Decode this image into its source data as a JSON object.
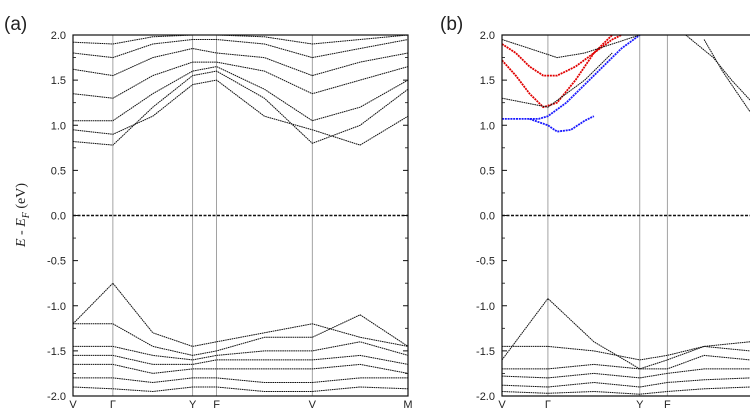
{
  "chart_data": [
    {
      "type": "line",
      "panel_label": "(a)",
      "ylabel": "E - E_F (eV)",
      "ylabel_main": "E - E",
      "ylabel_sub": "F",
      "ylabel_unit": " (eV)",
      "ylim": [
        -2.0,
        2.0
      ],
      "yticks": [
        "2.0",
        "1.5",
        "1.0",
        "0.5",
        "0.0",
        "-0.5",
        "-1.0",
        "-1.5",
        "-2.0"
      ],
      "kpoints": [
        {
          "label": "V",
          "x": 0.0
        },
        {
          "label": "Γ",
          "x": 0.5
        },
        {
          "label": "Y",
          "x": 1.5
        },
        {
          "label": "F",
          "x": 1.8
        },
        {
          "label": "V",
          "x": 3.0
        },
        {
          "label": "M",
          "x": 4.2
        }
      ],
      "fermi_level": 0.0,
      "series": [
        {
          "color": "#111111",
          "x": [
            0,
            0.5,
            1.0,
            1.5,
            1.8,
            2.4,
            3.0,
            3.6,
            4.2
          ],
          "y": [
            0.82,
            0.78,
            1.2,
            1.55,
            1.6,
            1.3,
            0.8,
            1.0,
            1.4
          ]
        },
        {
          "color": "#111111",
          "x": [
            0,
            0.5,
            1.0,
            1.5,
            1.8,
            2.4,
            3.0,
            3.6,
            4.2
          ],
          "y": [
            0.95,
            0.9,
            1.1,
            1.45,
            1.5,
            1.1,
            0.95,
            0.78,
            1.1
          ]
        },
        {
          "color": "#111111",
          "x": [
            0,
            0.5,
            1.0,
            1.5,
            1.8,
            2.4,
            3.0,
            3.6,
            4.2
          ],
          "y": [
            1.05,
            1.05,
            1.35,
            1.6,
            1.65,
            1.4,
            1.05,
            1.2,
            1.5
          ]
        },
        {
          "color": "#111111",
          "x": [
            0,
            0.5,
            1.0,
            1.5,
            1.8,
            2.4,
            3.0,
            3.6,
            4.2
          ],
          "y": [
            1.35,
            1.3,
            1.55,
            1.7,
            1.7,
            1.6,
            1.35,
            1.5,
            1.65
          ]
        },
        {
          "color": "#111111",
          "x": [
            0,
            0.5,
            1.0,
            1.5,
            1.8,
            2.4,
            3.0,
            3.6,
            4.2
          ],
          "y": [
            1.62,
            1.55,
            1.75,
            1.85,
            1.8,
            1.75,
            1.55,
            1.7,
            1.8
          ]
        },
        {
          "color": "#111111",
          "x": [
            0,
            0.5,
            1.0,
            1.5,
            1.8,
            2.4,
            3.0,
            3.6,
            4.2
          ],
          "y": [
            1.8,
            1.75,
            1.9,
            1.95,
            1.95,
            1.9,
            1.75,
            1.85,
            1.95
          ]
        },
        {
          "color": "#111111",
          "x": [
            0,
            0.5,
            1.0,
            1.5,
            1.8,
            2.4,
            3.0,
            3.6,
            4.2
          ],
          "y": [
            1.92,
            1.9,
            1.98,
            2.0,
            2.0,
            1.98,
            1.9,
            1.95,
            2.0
          ]
        },
        {
          "color": "#111111",
          "x": [
            0,
            0.5,
            1.0,
            1.5,
            1.8,
            2.4,
            3.0,
            3.6,
            4.2
          ],
          "y": [
            -1.2,
            -0.75,
            -1.3,
            -1.45,
            -1.4,
            -1.3,
            -1.2,
            -1.35,
            -1.45
          ]
        },
        {
          "color": "#111111",
          "x": [
            0,
            0.5,
            1.0,
            1.5,
            1.8,
            2.4,
            3.0,
            3.6,
            4.2
          ],
          "y": [
            -1.2,
            -1.2,
            -1.45,
            -1.55,
            -1.5,
            -1.35,
            -1.35,
            -1.1,
            -1.45
          ]
        },
        {
          "color": "#111111",
          "x": [
            0,
            0.5,
            1.0,
            1.5,
            1.8,
            2.4,
            3.0,
            3.6,
            4.2
          ],
          "y": [
            -1.45,
            -1.45,
            -1.55,
            -1.6,
            -1.55,
            -1.5,
            -1.5,
            -1.4,
            -1.55
          ]
        },
        {
          "color": "#111111",
          "x": [
            0,
            0.5,
            1.0,
            1.5,
            1.8,
            2.4,
            3.0,
            3.6,
            4.2
          ],
          "y": [
            -1.55,
            -1.55,
            -1.65,
            -1.65,
            -1.6,
            -1.6,
            -1.6,
            -1.55,
            -1.65
          ]
        },
        {
          "color": "#111111",
          "x": [
            0,
            0.5,
            1.0,
            1.5,
            1.8,
            2.4,
            3.0,
            3.6,
            4.2
          ],
          "y": [
            -1.65,
            -1.65,
            -1.75,
            -1.7,
            -1.7,
            -1.7,
            -1.7,
            -1.65,
            -1.75
          ]
        },
        {
          "color": "#111111",
          "x": [
            0,
            0.5,
            1.0,
            1.5,
            1.8,
            2.4,
            3.0,
            3.6,
            4.2
          ],
          "y": [
            -1.8,
            -1.8,
            -1.85,
            -1.8,
            -1.8,
            -1.85,
            -1.85,
            -1.8,
            -1.8
          ]
        },
        {
          "color": "#111111",
          "x": [
            0,
            0.5,
            1.0,
            1.5,
            1.8,
            2.4,
            3.0,
            3.6,
            4.2
          ],
          "y": [
            -1.9,
            -1.92,
            -1.95,
            -1.9,
            -1.9,
            -1.95,
            -1.95,
            -1.9,
            -1.92
          ]
        }
      ]
    },
    {
      "type": "line",
      "panel_label": "(b)",
      "ylim": [
        -2.0,
        2.0
      ],
      "yticks": [
        "2.0",
        "1.5",
        "1.0",
        "0.5",
        "0.0",
        "-0.5",
        "-1.0",
        "-1.5",
        "-2.0"
      ],
      "kpoints": [
        {
          "label": "V",
          "x": 0.0
        },
        {
          "label": "Γ",
          "x": 0.5
        },
        {
          "label": "Y",
          "x": 1.5
        },
        {
          "label": "F",
          "x": 1.8
        }
      ],
      "x_visible_max": 2.7,
      "fermi_level": 0.0,
      "series": [
        {
          "color": "#e00000",
          "x": [
            0,
            0.15,
            0.3,
            0.45,
            0.6,
            0.8,
            1.0,
            1.2
          ],
          "y": [
            1.72,
            1.55,
            1.35,
            1.2,
            1.25,
            1.5,
            1.8,
            2.0
          ]
        },
        {
          "color": "#e00000",
          "x": [
            0,
            0.15,
            0.3,
            0.45,
            0.6,
            0.8,
            1.0,
            1.2,
            1.3
          ],
          "y": [
            1.9,
            1.8,
            1.65,
            1.55,
            1.55,
            1.65,
            1.8,
            1.95,
            2.0
          ]
        },
        {
          "color": "#1a1aff",
          "x": [
            0,
            0.2,
            0.4,
            0.5,
            0.7,
            0.9,
            1.1,
            1.3,
            1.5
          ],
          "y": [
            1.07,
            1.07,
            1.07,
            1.1,
            1.25,
            1.45,
            1.65,
            1.85,
            2.0
          ]
        },
        {
          "color": "#1a1aff",
          "x": [
            0.3,
            0.5,
            0.6,
            0.75,
            0.9,
            1.0
          ],
          "y": [
            1.07,
            1.0,
            0.93,
            0.95,
            1.05,
            1.1
          ]
        },
        {
          "color": "#111111",
          "x": [
            0,
            0.3,
            0.6,
            0.9,
            1.2,
            1.5
          ],
          "y": [
            1.95,
            1.85,
            1.75,
            1.8,
            1.9,
            2.0
          ]
        },
        {
          "color": "#111111",
          "x": [
            0,
            0.5,
            0.9,
            1.2
          ],
          "y": [
            1.3,
            1.2,
            1.5,
            1.8
          ]
        },
        {
          "color": "#111111",
          "x": [
            2.2,
            2.4,
            2.6,
            2.7
          ],
          "y": [
            1.95,
            1.6,
            1.3,
            1.15
          ]
        },
        {
          "color": "#111111",
          "x": [
            2.0,
            2.3,
            2.5,
            2.7
          ],
          "y": [
            2.0,
            1.75,
            1.5,
            1.28
          ]
        },
        {
          "color": "#111111",
          "x": [
            0,
            0.5,
            1.0,
            1.5,
            1.8,
            2.2,
            2.7
          ],
          "y": [
            -1.6,
            -0.92,
            -1.4,
            -1.7,
            -1.6,
            -1.45,
            -1.4
          ]
        },
        {
          "color": "#111111",
          "x": [
            0,
            0.5,
            1.0,
            1.5,
            1.8,
            2.2,
            2.7
          ],
          "y": [
            -1.45,
            -1.45,
            -1.5,
            -1.6,
            -1.55,
            -1.45,
            -1.5
          ]
        },
        {
          "color": "#111111",
          "x": [
            0,
            0.5,
            1.0,
            1.5,
            1.8,
            2.2,
            2.7
          ],
          "y": [
            -1.7,
            -1.7,
            -1.65,
            -1.7,
            -1.7,
            -1.55,
            -1.6
          ]
        },
        {
          "color": "#111111",
          "x": [
            0,
            0.5,
            1.0,
            1.5,
            1.8,
            2.2,
            2.7
          ],
          "y": [
            -1.78,
            -1.8,
            -1.75,
            -1.8,
            -1.75,
            -1.7,
            -1.7
          ]
        },
        {
          "color": "#111111",
          "x": [
            0,
            0.5,
            1.0,
            1.5,
            1.8,
            2.2,
            2.7
          ],
          "y": [
            -1.88,
            -1.9,
            -1.85,
            -1.9,
            -1.85,
            -1.82,
            -1.8
          ]
        },
        {
          "color": "#111111",
          "x": [
            0,
            0.5,
            1.0,
            1.5,
            1.8,
            2.2,
            2.7
          ],
          "y": [
            -1.95,
            -1.97,
            -1.95,
            -1.98,
            -1.95,
            -1.92,
            -1.9
          ]
        }
      ]
    }
  ]
}
